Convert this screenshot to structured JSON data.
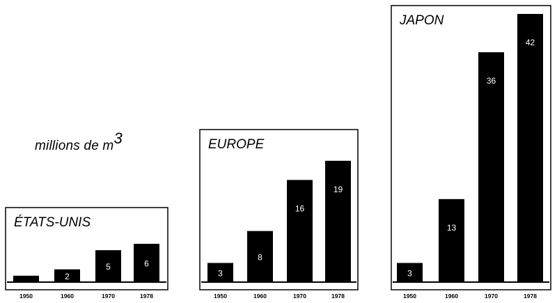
{
  "unit_label": {
    "text": "millions de m",
    "superscript": "3"
  },
  "chart_data": [
    {
      "type": "bar",
      "title": "ÉTATS-UNIS",
      "categories": [
        "1950",
        "1960",
        "1970",
        "1978"
      ],
      "values": [
        1,
        2,
        5,
        6
      ],
      "value_labels": [
        "",
        "2",
        "5",
        "6"
      ],
      "ylim": [
        0,
        42
      ],
      "bar_color": "#000000",
      "label_color": "#ffffff",
      "legend": "none",
      "grid": false
    },
    {
      "type": "bar",
      "title": "EUROPE",
      "categories": [
        "1950",
        "1960",
        "1970",
        "1978"
      ],
      "values": [
        3,
        8,
        16,
        19
      ],
      "value_labels": [
        "3",
        "8",
        "16",
        "19"
      ],
      "ylim": [
        0,
        42
      ],
      "bar_color": "#000000",
      "label_color": "#ffffff",
      "legend": "none",
      "grid": false
    },
    {
      "type": "bar",
      "title": "JAPON",
      "categories": [
        "1950",
        "1960",
        "1970",
        "1978"
      ],
      "values": [
        3,
        13,
        36,
        42
      ],
      "value_labels": [
        "3",
        "13",
        "36",
        "42"
      ],
      "ylim": [
        0,
        42
      ],
      "bar_color": "#000000",
      "label_color": "#ffffff",
      "legend": "none",
      "grid": false
    }
  ]
}
